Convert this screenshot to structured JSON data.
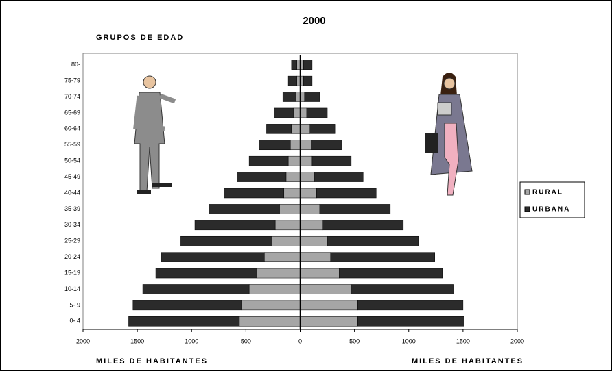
{
  "chart_data": {
    "type": "pyramid",
    "title": "2000",
    "y_axis_label": "GRUPOS DE EDAD",
    "x_axis_label_left": "MILES DE HABITANTES",
    "x_axis_label_right": "MILES DE HABITANTES",
    "categories": [
      "0- 4",
      "5- 9",
      "10-14",
      "15-19",
      "20-24",
      "25-29",
      "30-34",
      "35-39",
      "40-44",
      "45-49",
      "50-54",
      "55-59",
      "60-64",
      "65-69",
      "70-74",
      "75-79",
      "80-"
    ],
    "series": [
      {
        "name": "RURAL",
        "color": "#a6a6a6",
        "left": [
          -560,
          -540,
          -470,
          -400,
          -330,
          -260,
          -230,
          -190,
          -150,
          -130,
          -110,
          -90,
          -80,
          -60,
          -40,
          -30,
          -30
        ],
        "right": [
          530,
          530,
          470,
          360,
          280,
          250,
          210,
          180,
          150,
          130,
          110,
          100,
          90,
          60,
          40,
          30,
          30
        ]
      },
      {
        "name": "URBANA",
        "color": "#2b2b2b",
        "left": [
          -1020,
          -1000,
          -980,
          -930,
          -950,
          -840,
          -740,
          -650,
          -550,
          -450,
          -360,
          -290,
          -230,
          -180,
          -120,
          -80,
          -50
        ],
        "right": [
          980,
          970,
          940,
          950,
          960,
          840,
          740,
          650,
          550,
          450,
          360,
          280,
          230,
          190,
          140,
          80,
          80
        ]
      }
    ],
    "xlim": [
      -2000,
      2000
    ],
    "xticks": [
      {
        "value": -2000,
        "label": "2000"
      },
      {
        "value": -1500,
        "label": "1500"
      },
      {
        "value": -1000,
        "label": "1000"
      },
      {
        "value": -500,
        "label": "500"
      },
      0,
      500,
      1000,
      1500,
      2000
    ]
  }
}
